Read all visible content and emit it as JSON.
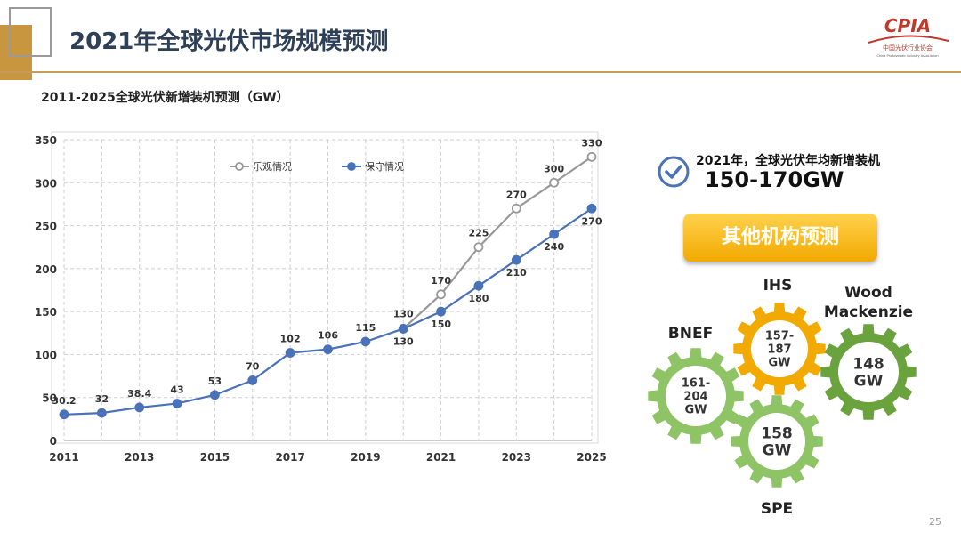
{
  "page": {
    "title": "2021年全球光伏市场规模预测",
    "number": "25"
  },
  "logo": {
    "text": "CPIA",
    "subtext": "中国光伏行业协会",
    "subtext2": "China Photovoltaic Industry Association"
  },
  "chart_data": {
    "type": "line",
    "title": "2011-2025全球光伏新增装机预测（GW）",
    "x": [
      2011,
      2012,
      2013,
      2014,
      2015,
      2016,
      2017,
      2018,
      2019,
      2020,
      2021,
      2022,
      2023,
      2024,
      2025
    ],
    "xticks": [
      "2011",
      "2013",
      "2015",
      "2017",
      "2019",
      "2021",
      "2023",
      "2025"
    ],
    "ylim": [
      0,
      350
    ],
    "yticks": [
      "0",
      "50",
      "100",
      "150",
      "200",
      "250",
      "300",
      "350"
    ],
    "grid": true,
    "legend_position": "top",
    "series": [
      {
        "name": "乐观情况",
        "color": "#999999",
        "x": [
          2020,
          2021,
          2022,
          2023,
          2024,
          2025
        ],
        "values": [
          130,
          170,
          225,
          270,
          300,
          330
        ],
        "labels": [
          "",
          "170",
          "225",
          "270",
          "300",
          "330"
        ]
      },
      {
        "name": "保守情况",
        "color": "#4a72b8",
        "x": [
          2011,
          2012,
          2013,
          2014,
          2015,
          2016,
          2017,
          2018,
          2019,
          2020,
          2021,
          2022,
          2023,
          2024,
          2025
        ],
        "values": [
          30.2,
          32,
          38.4,
          43,
          53,
          70,
          102,
          106,
          115,
          130,
          150,
          180,
          210,
          240,
          270
        ],
        "labels": [
          "30.2",
          "32",
          "38.4",
          "43",
          "53",
          "70",
          "102",
          "106",
          "115",
          "130",
          "150",
          "180",
          "210",
          "240",
          "270"
        ]
      }
    ],
    "extra_labels": [
      {
        "x": 2020,
        "text": "130",
        "position": "above"
      }
    ]
  },
  "highlight": {
    "label": "2021年，全球光伏年均新增装机",
    "value": "150-170GW",
    "icon": "check-circle-icon"
  },
  "other_button": {
    "label": "其他机构预测"
  },
  "gears": [
    {
      "name": "BNEF",
      "value": "161-\n204\nGW",
      "color": "#8ec466"
    },
    {
      "name": "IHS",
      "value": "157-\n187\nGW",
      "color": "#f2a900"
    },
    {
      "name": "Wood\nMackenzie",
      "value": "148\nGW",
      "color": "#6aa33e"
    },
    {
      "name": "SPE",
      "value": "158\nGW",
      "color": "#8ec466"
    }
  ],
  "colors": {
    "accent": "#c89b5a",
    "title": "#2e4057",
    "blue": "#4a72b8",
    "gray": "#999999"
  }
}
